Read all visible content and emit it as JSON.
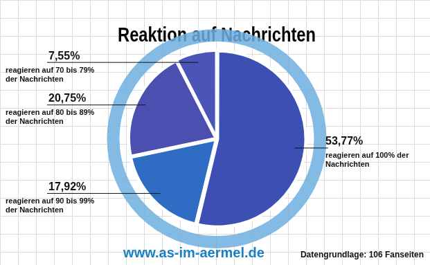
{
  "chart_data": {
    "type": "pie",
    "title": "Reaktion auf Nachrichten",
    "categories": [
      "reagieren auf 100% der Nachrichten",
      "reagieren auf 90 bis 99% der Nachrichten",
      "reagieren auf 80 bis 89% der Nachrichten",
      "reagieren auf 70 bis 79% der Nachrichten"
    ],
    "values": [
      53.77,
      17.92,
      20.75,
      7.55
    ],
    "value_labels": [
      "53,77%",
      "17,92%",
      "20,75%",
      "7,55%"
    ],
    "colors": [
      "#3d4fb3",
      "#2f6cc4",
      "#4a4fb0",
      "#4b55b8"
    ],
    "data_labels": true,
    "legend": false,
    "source": "www.as-im-aermel.de",
    "note": "Datengrundlage: 106 Fanseiten"
  }
}
